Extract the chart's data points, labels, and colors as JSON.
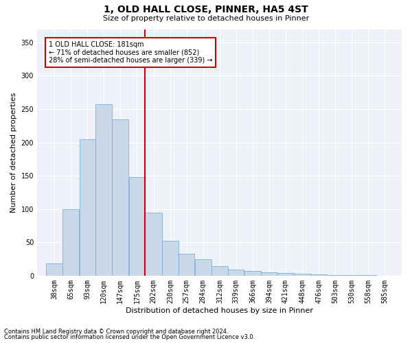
{
  "title1": "1, OLD HALL CLOSE, PINNER, HA5 4ST",
  "title2": "Size of property relative to detached houses in Pinner",
  "xlabel": "Distribution of detached houses by size in Pinner",
  "ylabel": "Number of detached properties",
  "footnote1": "Contains HM Land Registry data © Crown copyright and database right 2024.",
  "footnote2": "Contains public sector information licensed under the Open Government Licence v3.0.",
  "annotation_line1": "1 OLD HALL CLOSE: 181sqm",
  "annotation_line2": "← 71% of detached houses are smaller (852)",
  "annotation_line3": "28% of semi-detached houses are larger (339) →",
  "bar_labels": [
    "38sqm",
    "65sqm",
    "93sqm",
    "120sqm",
    "147sqm",
    "175sqm",
    "202sqm",
    "230sqm",
    "257sqm",
    "284sqm",
    "312sqm",
    "339sqm",
    "366sqm",
    "394sqm",
    "421sqm",
    "448sqm",
    "476sqm",
    "503sqm",
    "530sqm",
    "558sqm",
    "585sqm"
  ],
  "bar_values": [
    18,
    100,
    205,
    257,
    235,
    148,
    95,
    52,
    33,
    25,
    14,
    9,
    7,
    5,
    4,
    3,
    2,
    1,
    1,
    1,
    0
  ],
  "bar_edges": [
    38,
    65,
    93,
    120,
    147,
    175,
    202,
    230,
    257,
    284,
    312,
    339,
    366,
    394,
    421,
    448,
    476,
    503,
    530,
    558,
    585,
    612
  ],
  "bar_color": "#c9d9ea",
  "bar_edge_color": "#7ab0d4",
  "vline_color": "#cc0000",
  "annotation_box_color": "#cc0000",
  "background_color": "#eef2f8",
  "ylim": [
    0,
    370
  ],
  "yticks": [
    0,
    50,
    100,
    150,
    200,
    250,
    300,
    350
  ],
  "title1_fontsize": 10,
  "title2_fontsize": 8,
  "ylabel_fontsize": 8,
  "xlabel_fontsize": 8,
  "tick_fontsize": 7,
  "annotation_fontsize": 7,
  "footnote_fontsize": 6
}
